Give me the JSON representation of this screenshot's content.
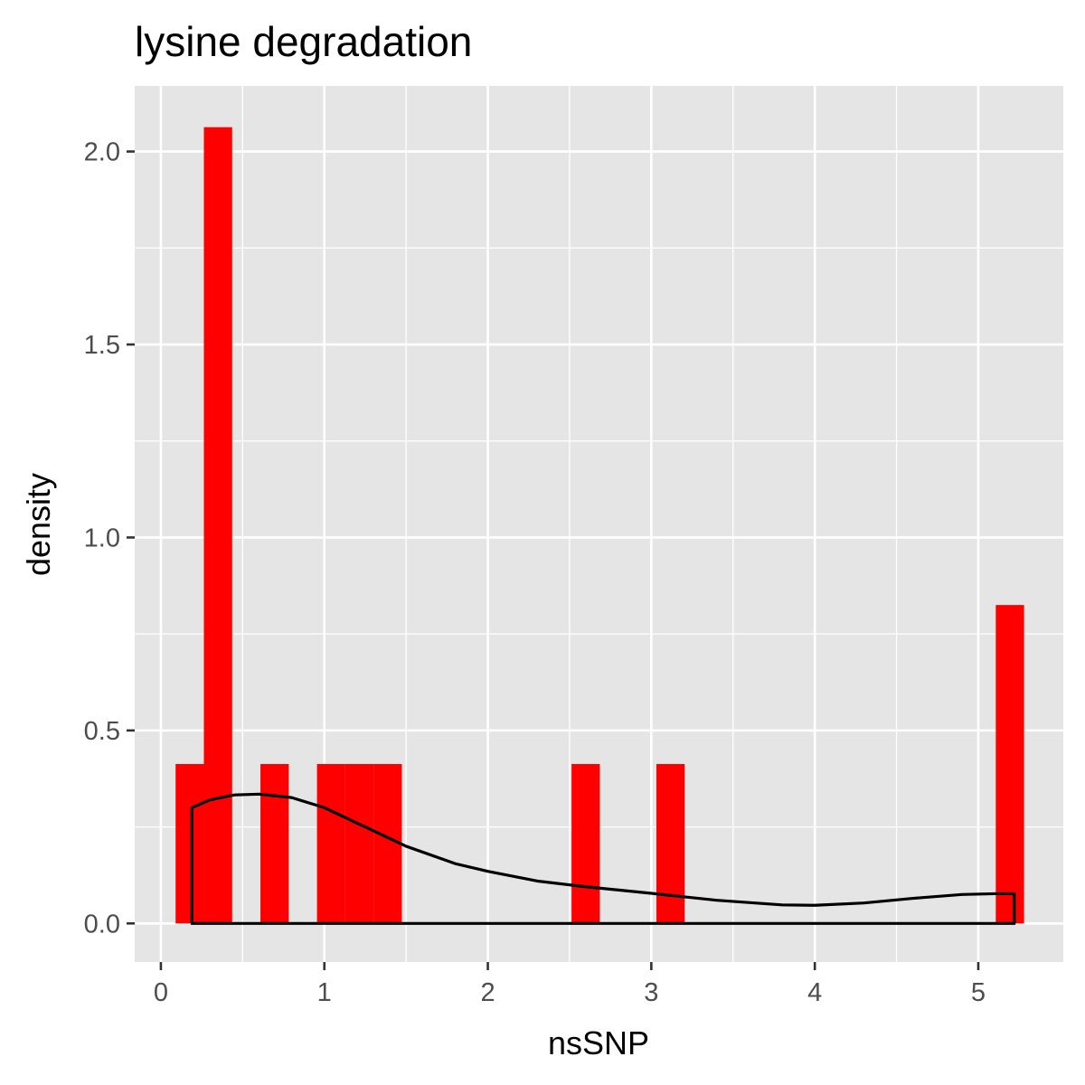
{
  "chart_data": {
    "type": "bar",
    "title": "lysine degradation",
    "xlabel": "nsSNP",
    "ylabel": "density",
    "xlim": [
      -0.16,
      5.52
    ],
    "ylim": [
      -0.1,
      2.17
    ],
    "x_ticks": [
      "0",
      "1",
      "2",
      "3",
      "4",
      "5"
    ],
    "x_tick_values": [
      0,
      1,
      2,
      3,
      4,
      5
    ],
    "y_ticks": [
      "0.0",
      "0.5",
      "1.0",
      "1.5",
      "2.0"
    ],
    "y_tick_values": [
      0,
      0.5,
      1.0,
      1.5,
      2.0
    ],
    "grid": true,
    "legend": "none",
    "colors": {
      "panel": "#e5e5e5",
      "grid": "#ffffff",
      "bar": "#ff0000",
      "density": "#000000"
    },
    "histogram": {
      "bin_width": 0.174,
      "bars": [
        {
          "x0": 0.09,
          "x1": 0.263,
          "y": 0.413
        },
        {
          "x0": 0.263,
          "x1": 0.436,
          "y": 2.063
        },
        {
          "x0": 0.609,
          "x1": 0.782,
          "y": 0.413
        },
        {
          "x0": 0.955,
          "x1": 1.128,
          "y": 0.413
        },
        {
          "x0": 1.128,
          "x1": 1.301,
          "y": 0.413
        },
        {
          "x0": 1.301,
          "x1": 1.474,
          "y": 0.413
        },
        {
          "x0": 2.512,
          "x1": 2.685,
          "y": 0.413
        },
        {
          "x0": 3.031,
          "x1": 3.204,
          "y": 0.413
        },
        {
          "x0": 5.107,
          "x1": 5.28,
          "y": 0.825
        }
      ]
    },
    "density": {
      "x": [
        0.19,
        0.3,
        0.45,
        0.6,
        0.8,
        1.0,
        1.25,
        1.5,
        1.8,
        2.0,
        2.3,
        2.6,
        3.0,
        3.4,
        3.8,
        4.0,
        4.3,
        4.6,
        4.9,
        5.1,
        5.22
      ],
      "y": [
        0.3,
        0.32,
        0.333,
        0.335,
        0.326,
        0.3,
        0.25,
        0.2,
        0.155,
        0.135,
        0.11,
        0.095,
        0.078,
        0.06,
        0.048,
        0.047,
        0.053,
        0.065,
        0.075,
        0.077,
        0.077
      ]
    }
  }
}
